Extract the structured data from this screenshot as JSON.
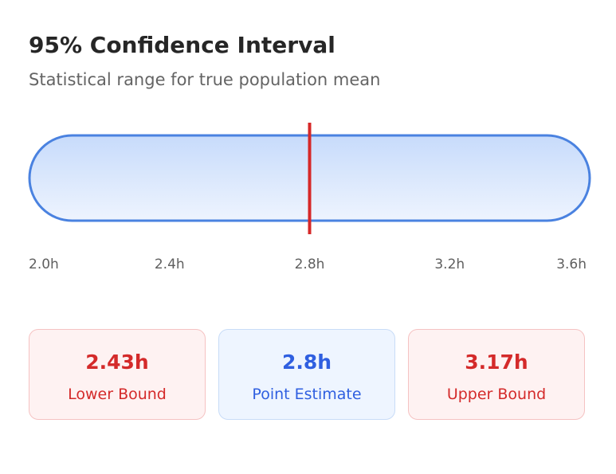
{
  "header": {
    "title": "95% Confidence Interval",
    "subtitle": "Statistical range for true population mean"
  },
  "chart_data": {
    "type": "interval",
    "title": "95% Confidence Interval",
    "subtitle": "Statistical range for true population mean",
    "unit": "h",
    "xlim": [
      2.0,
      3.6
    ],
    "ticks": [
      2.0,
      2.4,
      2.8,
      3.2,
      3.6
    ],
    "tick_labels": [
      "2.0h",
      "2.4h",
      "2.8h",
      "3.2h",
      "3.6h"
    ],
    "lower": 2.43,
    "estimate": 2.8,
    "upper": 3.17,
    "colors": {
      "band_border": "#4a82e0",
      "band_fill_top": "#c7dbfb",
      "band_fill_bottom": "#eef4fe",
      "estimate_line": "#d62828"
    }
  },
  "cards": [
    {
      "value": "2.43h",
      "label": "Lower Bound",
      "color": "#d42a2a"
    },
    {
      "value": "2.8h",
      "label": "Point Estimate",
      "color": "#2f5fe0"
    },
    {
      "value": "3.17h",
      "label": "Upper Bound",
      "color": "#d42a2a"
    }
  ]
}
